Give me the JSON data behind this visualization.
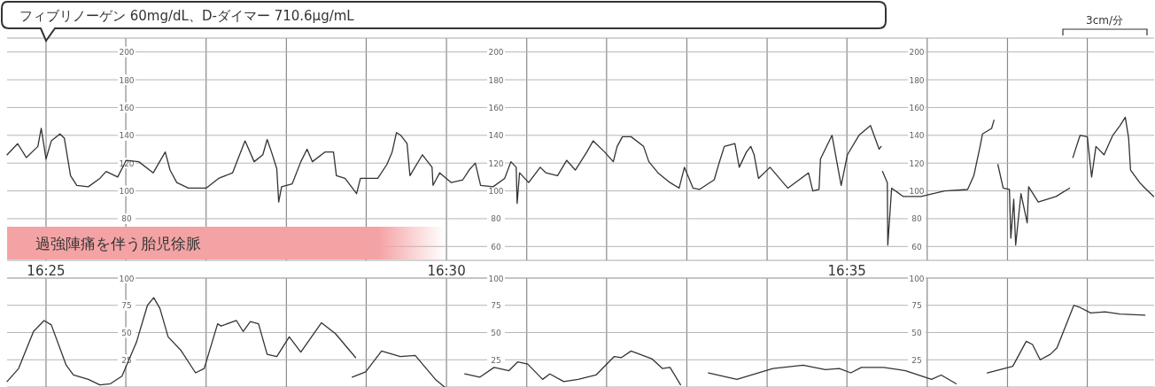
{
  "chart_data": [
    {
      "type": "line",
      "annotations": [
        "フィブリノーゲン 60mg/dL、D-ダイマー 710.6μg/mL",
        "3cm/分"
      ],
      "bands": [
        {
          "axis": "x",
          "from": 16.4086,
          "to": 16.4996,
          "label": "過強陣痛を伴う胎児徐脈",
          "color": "#f4a3a5"
        }
      ],
      "x": [
        16.4086,
        16.4108,
        16.4126,
        16.415,
        16.4157,
        16.4167,
        16.4178,
        16.4196,
        16.4205,
        16.4218,
        16.4231,
        16.4255,
        16.4279,
        16.4292,
        16.4316,
        16.4334,
        16.436,
        16.439,
        16.4415,
        16.4425,
        16.4439,
        16.4463,
        16.45,
        16.4526,
        16.4555,
        16.4581,
        16.46,
        16.4618,
        16.4627,
        16.4636,
        16.4647,
        16.4651,
        16.4657,
        16.4679,
        16.4697,
        16.471,
        16.4721,
        16.4747,
        16.4765,
        16.4771,
        16.4789,
        16.4813,
        16.4821,
        16.4857,
        16.4876,
        16.4887,
        16.4896,
        16.4905,
        16.4918,
        16.4924,
        16.495,
        16.497,
        16.4972,
        16.4986,
        16.501,
        16.5034,
        16.5047,
        16.506,
        16.5071,
        16.5097,
        16.5121,
        16.5134,
        16.5145,
        16.5147,
        16.5152,
        16.5171,
        16.5195,
        16.5207,
        16.5231,
        16.525,
        16.5268,
        16.5292,
        16.5305,
        16.5329,
        16.5347,
        16.5355,
        16.5366,
        16.5384,
        16.541,
        16.5421,
        16.544,
        16.5465,
        16.5484,
        16.5495,
        16.5513,
        16.5526,
        16.5557,
        16.5567,
        16.5578,
        16.56,
        16.5609,
        16.5624,
        16.5633,
        16.564,
        16.5649,
        16.5673,
        16.5688,
        16.571,
        16.5753,
        16.5762,
        16.5775,
        16.5778,
        16.5802,
        16.5821,
        16.5834,
        16.5858,
        16.5882,
        16.59,
        16.5904,
        16.5905,
        16.5907,
        16.5917,
        16.5918,
        16.5926,
        16.595,
        16.5987,
        16.6036,
        16.6084,
        16.6097,
        16.611,
        16.6115,
        16.6134,
        16.6139,
        16.6143,
        16.6147,
        16.6158,
        16.6171,
        16.6174,
        16.618,
        16.6184,
        16.6195,
        16.6208,
        16.6211,
        16.6231,
        16.6268,
        16.6296,
        16.63,
        16.6303,
        16.6318,
        16.6333,
        16.6342,
        16.6351,
        16.6368,
        16.6386,
        16.6401,
        16.6412,
        16.6419,
        16.6423,
        16.6442,
        16.6453,
        16.6471
      ],
      "values": [
        126,
        134,
        124,
        132,
        145,
        123,
        136,
        141,
        138,
        111,
        104,
        103,
        109,
        114,
        110,
        122,
        121,
        113,
        128,
        115,
        106,
        102,
        102,
        109,
        113,
        136,
        121,
        126,
        137,
        128,
        116,
        92,
        103,
        105,
        121,
        130,
        121,
        128,
        128,
        111,
        109,
        98,
        109,
        109,
        119,
        128,
        142,
        140,
        134,
        111,
        126,
        117,
        104,
        113,
        106,
        108,
        115,
        120,
        104,
        103,
        109,
        121,
        117,
        91,
        113,
        106,
        117,
        113,
        111,
        122,
        115,
        128,
        136,
        128,
        121,
        132,
        139,
        139,
        132,
        121,
        113,
        106,
        102,
        117,
        102,
        101,
        108,
        120,
        132,
        134,
        117,
        128,
        132,
        126,
        109,
        117,
        111,
        102,
        113,
        100,
        101,
        123,
        140,
        104,
        126,
        140,
        147,
        130,
        132,
        null,
        114,
        106,
        61,
        102,
        96,
        96,
        100,
        101,
        111,
        132,
        141,
        145,
        151,
        null,
        119,
        102,
        101,
        66,
        94,
        61,
        98,
        77,
        103,
        92,
        96,
        102,
        null,
        124,
        140,
        139,
        110,
        132,
        126,
        140,
        147,
        153,
        138,
        115,
        106,
        102,
        96
      ],
      "color": "#333333",
      "xlim": [
        16.4086,
        16.6472
      ],
      "xticks": [
        {
          "value": 16.4167,
          "label": "16:25"
        },
        {
          "value": 16.4333,
          "label": null
        },
        {
          "value": 16.45,
          "label": null
        },
        {
          "value": 16.4667,
          "label": null
        },
        {
          "value": 16.4833,
          "label": null
        },
        {
          "value": 16.5,
          "label": "16:30"
        },
        {
          "value": 16.5167,
          "label": null
        },
        {
          "value": 16.5333,
          "label": null
        },
        {
          "value": 16.55,
          "label": null
        },
        {
          "value": 16.5667,
          "label": null
        },
        {
          "value": 16.5833,
          "label": "16:35"
        },
        {
          "value": 16.6,
          "label": null
        },
        {
          "value": 16.6167,
          "label": null
        },
        {
          "value": 16.6333,
          "label": null
        }
      ],
      "ylim": [
        50,
        210
      ],
      "yticks": [
        80,
        100,
        120,
        140,
        160,
        180,
        200
      ],
      "y2lim": [
        50,
        210
      ],
      "y2ticks": [
        60,
        80,
        100,
        120,
        140,
        160,
        180,
        200
      ],
      "y3lim": [
        50,
        210
      ],
      "y3ticks": [
        60,
        80,
        100,
        120,
        140,
        160,
        180,
        200
      ],
      "grid": true
    },
    {
      "type": "line",
      "x": [
        16.4086,
        16.411,
        16.4141,
        16.4163,
        16.4178,
        16.4209,
        16.4224,
        16.4255,
        16.4279,
        16.4301,
        16.4325,
        16.4355,
        16.4378,
        16.4391,
        16.4404,
        16.4421,
        16.4447,
        16.4478,
        16.4496,
        16.4524,
        16.4531,
        16.4563,
        16.4577,
        16.4592,
        16.4609,
        16.4627,
        16.4647,
        16.4673,
        16.4697,
        16.474,
        16.4769,
        16.4811,
        16.4808,
        16.4804,
        16.4832,
        16.4865,
        16.4904,
        16.4935,
        16.4977,
        16.4996,
        16.5017,
        16.5038,
        16.5069,
        16.5099,
        16.513,
        16.5148,
        16.5169,
        16.52,
        16.5215,
        16.5244,
        16.5274,
        16.5311,
        16.5349,
        16.5364,
        16.5384,
        16.5427,
        16.5449,
        16.5465,
        16.5487,
        16.5516,
        16.5545,
        16.5604,
        16.5679,
        16.5742,
        16.5788,
        16.5817,
        16.5841,
        16.5863,
        16.5909,
        16.5955,
        16.6009,
        16.6029,
        16.606,
        16.6093,
        16.6125,
        16.6178,
        16.6206,
        16.6219,
        16.6235,
        16.6256,
        16.627,
        16.6305,
        16.6318,
        16.634,
        16.637,
        16.6401,
        16.6453
      ],
      "values": [
        5,
        17,
        51,
        61,
        57,
        20,
        11,
        7,
        2,
        3,
        10,
        41,
        75,
        82,
        72,
        46,
        34,
        13,
        17,
        58,
        56,
        61,
        51,
        60,
        58,
        30,
        28,
        46,
        32,
        59,
        49,
        27,
        null,
        9,
        14,
        33,
        28,
        29,
        7,
        0,
        null,
        12,
        9,
        18,
        15,
        23,
        21,
        7,
        12,
        5,
        7,
        11,
        28,
        27,
        33,
        26,
        17,
        18,
        2,
        null,
        13,
        7,
        17,
        20,
        16,
        17,
        13,
        18,
        18,
        15,
        7,
        11,
        3,
        null,
        13,
        19,
        42,
        39,
        25,
        30,
        36,
        75,
        73,
        68,
        69,
        67,
        66
      ],
      "color": "#333333",
      "xlim": [
        16.4086,
        16.6472
      ],
      "xticks": [
        {
          "value": 16.4167,
          "label": null
        },
        {
          "value": 16.4333,
          "label": null
        },
        {
          "value": 16.45,
          "label": null
        },
        {
          "value": 16.4667,
          "label": null
        },
        {
          "value": 16.4833,
          "label": null
        },
        {
          "value": 16.5,
          "label": null
        },
        {
          "value": 16.5167,
          "label": null
        },
        {
          "value": 16.5333,
          "label": null
        },
        {
          "value": 16.55,
          "label": null
        },
        {
          "value": 16.5667,
          "label": null
        },
        {
          "value": 16.5833,
          "label": null
        },
        {
          "value": 16.6,
          "label": null
        },
        {
          "value": 16.6167,
          "label": null
        },
        {
          "value": 16.6333,
          "label": null
        }
      ],
      "ylim": [
        0,
        100
      ],
      "yticks": [
        25,
        50,
        75,
        100
      ],
      "y2lim": [
        0,
        100
      ],
      "y2ticks": [
        25,
        50,
        75,
        100
      ],
      "y3lim": [
        0,
        100
      ],
      "y3ticks": [
        25,
        50,
        75,
        100
      ],
      "grid": true,
      "tick_labels": "y"
    }
  ]
}
